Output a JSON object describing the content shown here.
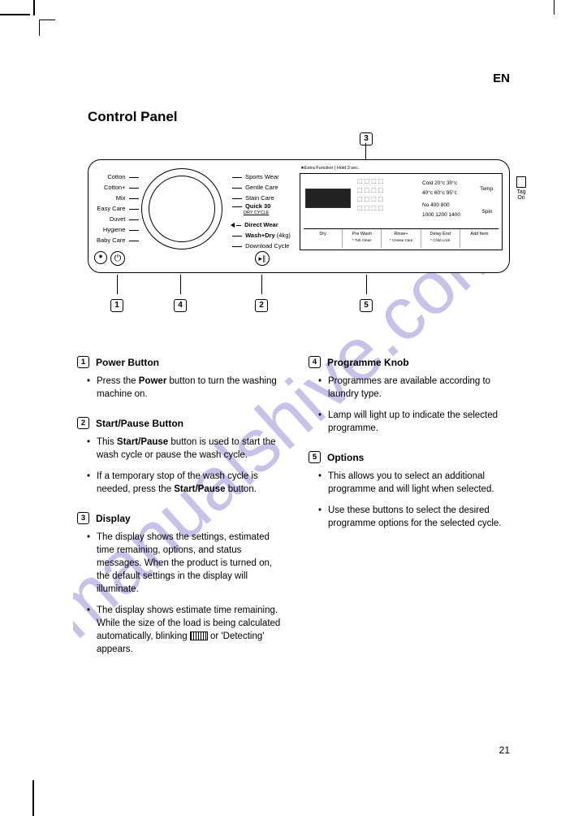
{
  "lang": "EN",
  "title": "Control Panel",
  "page_number": "21",
  "watermark_text": "manualshive.com",
  "panel": {
    "programmes_left": [
      "Cotton",
      "Cotton+",
      "Mix",
      "Easy Care",
      "Duvet",
      "Hygiene",
      "Baby Care"
    ],
    "programmes_right": [
      "Sports Wear",
      "Gentle Care",
      "Stain Care",
      "Quick 30",
      "Direct Wear",
      "Wash+Dry (4kg)",
      "Download Cycle"
    ],
    "dry_cycle": "DRY CYCLE",
    "extra_function": "★Extra Function | Hold 3 sec.",
    "temps_row1": "Cold   20°c   30°c",
    "temps_row2": "40°c   60°c   95°c",
    "spins_row1": "No   400   800",
    "spins_row2": "1000   1200   1400",
    "temp_btn": "Temp.",
    "spin_btn": "Spin",
    "bottom": [
      "Dry",
      "Pre Wash",
      "Rinse+",
      "Delay End",
      "Add Item"
    ],
    "bottom_sub": [
      "",
      "* Tub Clean",
      "* Crease Care",
      "* Child Lock",
      ""
    ],
    "nfc": "Tag On"
  },
  "callouts": {
    "c1": "1",
    "c2": "2",
    "c3": "3",
    "c4": "4",
    "c5": "5"
  },
  "sections": {
    "s1": {
      "num": "1",
      "title": "Power Button",
      "bullets": [
        "Press the <b>Power</b> button to turn the washing machine on."
      ]
    },
    "s2": {
      "num": "2",
      "title": "Start/Pause Button",
      "bullets": [
        "This <b>Start/Pause</b> button is used to start the wash cycle or pause the wash cycle.",
        "If a temporary stop of the wash cycle is needed, press the <b>Start/Pause</b> button."
      ]
    },
    "s3": {
      "num": "3",
      "title": "Display",
      "bullets": [
        "The display shows the settings, estimated time remaining, options, and status messages. When the product is turned on, the default settings in the display will illuminate.",
        "The display shows estimate time remaining. While the size of the load is being calculated automatically, blinking <span class=\"det-icon\"></span> or 'Detecting' appears."
      ]
    },
    "s4": {
      "num": "4",
      "title": "Programme Knob",
      "bullets": [
        "Programmes are available according to laundry type.",
        "Lamp will light up to indicate the selected programme."
      ]
    },
    "s5": {
      "num": "5",
      "title": "Options",
      "bullets": [
        "This allows you to select an additional programme and will light when selected.",
        "Use these buttons to select the desired programme options for the selected cycle."
      ]
    }
  },
  "colors": {
    "watermark": "#9a8fd9"
  }
}
